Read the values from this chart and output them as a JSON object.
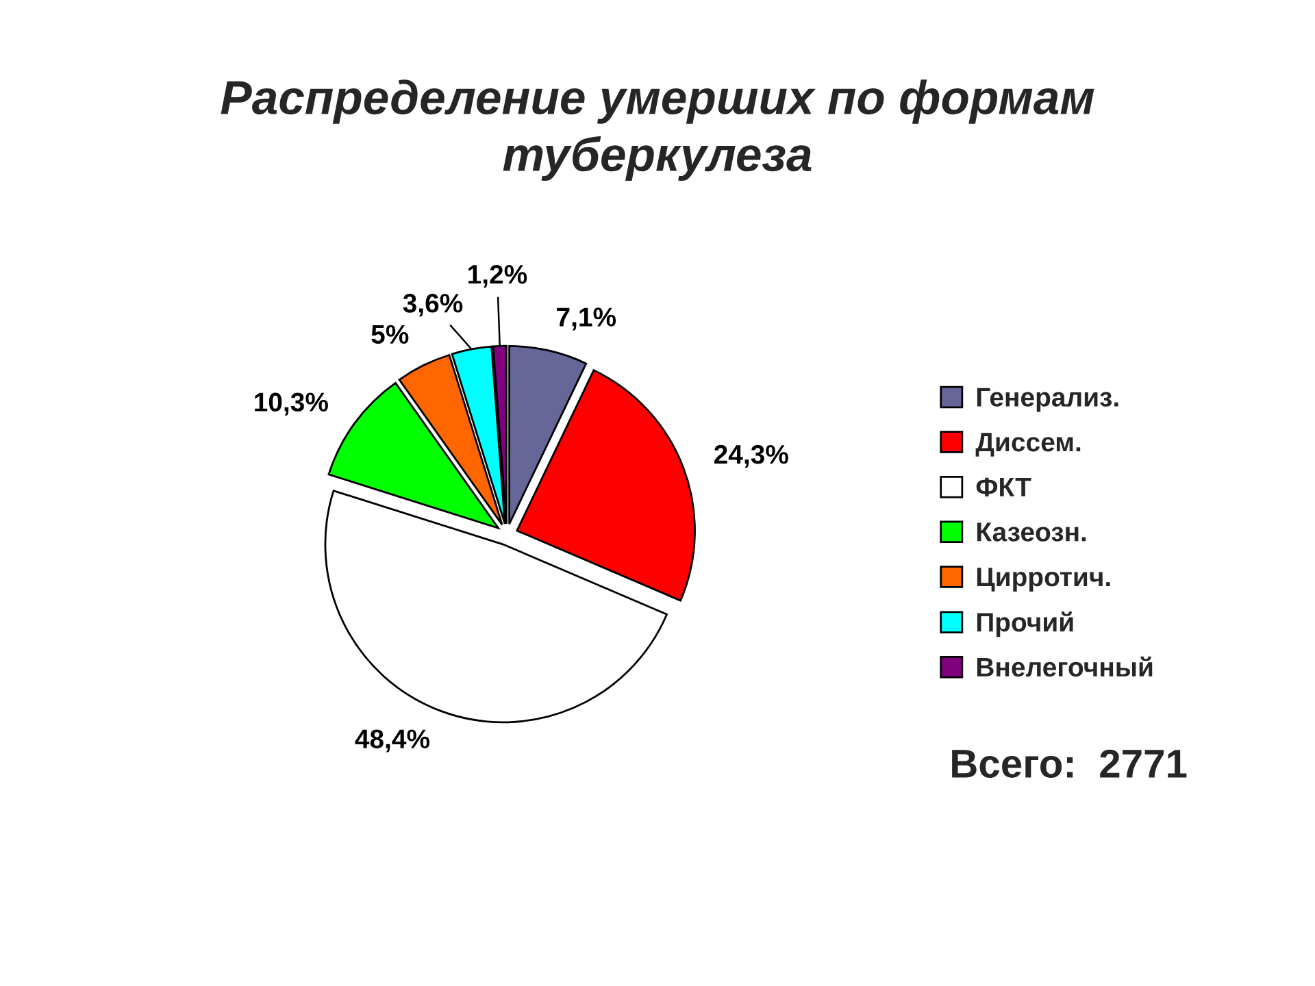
{
  "chart_data": {
    "type": "pie",
    "title": "Распределение умерших по формам\nтуберкулеза",
    "categories": [
      "Генерализ.",
      "Диссем.",
      "ФКТ",
      "Казеозн.",
      "Цирротич.",
      "Прочий",
      "Внелегочный"
    ],
    "values": [
      7.1,
      24.3,
      48.4,
      10.3,
      5,
      3.6,
      1.2
    ],
    "colors": [
      "#666699",
      "#ff0000",
      "#ffffff",
      "#00ff00",
      "#ff6600",
      "#00ffff",
      "#800080"
    ],
    "value_labels": [
      "7,1%",
      "24,3%",
      "48,4%",
      "10,3%",
      "5%",
      "3,6%",
      "1,2%"
    ],
    "legend": "right",
    "annotations": [
      "Всего:  2771"
    ]
  }
}
